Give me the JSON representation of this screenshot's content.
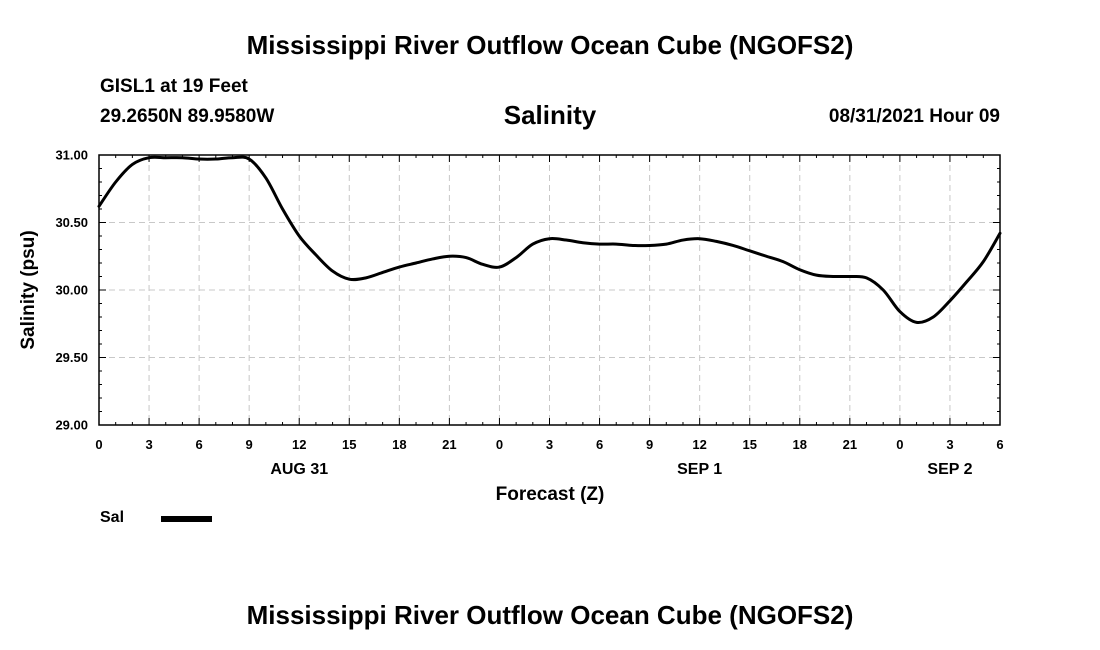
{
  "header": {
    "title_top": "Mississippi River Outflow Ocean Cube (NGOFS2)",
    "station": "GISL1 at 19 Feet",
    "coords": "29.2650N  89.9580W",
    "variable": "Salinity",
    "datetime": "08/31/2021 Hour 09"
  },
  "footer": {
    "title_bottom": "Mississippi River Outflow Ocean Cube (NGOFS2)"
  },
  "legend": {
    "label": "Sal",
    "color": "#000000"
  },
  "chart_data": {
    "type": "line",
    "title": "Salinity",
    "xlabel": "Forecast (Z)",
    "ylabel": "Salinity (psu)",
    "ylim": [
      29.0,
      31.0
    ],
    "xlim": [
      0,
      54
    ],
    "grid": true,
    "y_ticks": [
      29.0,
      29.5,
      30.0,
      30.5,
      31.0
    ],
    "y_tick_labels": [
      "29.00",
      "29.50",
      "30.00",
      "30.50",
      "31.00"
    ],
    "x_ticks": [
      0,
      3,
      6,
      9,
      12,
      15,
      18,
      21,
      24,
      27,
      30,
      33,
      36,
      39,
      42,
      45,
      48,
      51,
      54
    ],
    "x_tick_labels": [
      "0",
      "3",
      "6",
      "9",
      "12",
      "15",
      "18",
      "21",
      "0",
      "3",
      "6",
      "9",
      "12",
      "15",
      "18",
      "21",
      "0",
      "3",
      "6"
    ],
    "date_labels": [
      {
        "x": 12,
        "label": "AUG 31"
      },
      {
        "x": 36,
        "label": "SEP 1"
      },
      {
        "x": 51,
        "label": "SEP 2"
      }
    ],
    "series": [
      {
        "name": "Sal",
        "x": [
          0,
          1,
          2,
          3,
          4,
          5,
          6,
          7,
          8,
          9,
          10,
          11,
          12,
          13,
          14,
          15,
          16,
          17,
          18,
          19,
          20,
          21,
          22,
          23,
          24,
          25,
          26,
          27,
          28,
          29,
          30,
          31,
          32,
          33,
          34,
          35,
          36,
          37,
          38,
          39,
          40,
          41,
          42,
          43,
          44,
          45,
          46,
          47,
          48,
          49,
          50,
          51,
          52,
          53,
          54
        ],
        "values": [
          30.62,
          30.8,
          30.93,
          30.98,
          30.98,
          30.98,
          30.97,
          30.97,
          30.98,
          30.97,
          30.83,
          30.6,
          30.4,
          30.26,
          30.14,
          30.08,
          30.09,
          30.13,
          30.17,
          30.2,
          30.23,
          30.25,
          30.24,
          30.19,
          30.17,
          30.24,
          30.34,
          30.38,
          30.37,
          30.35,
          30.34,
          30.34,
          30.33,
          30.33,
          30.34,
          30.37,
          30.38,
          30.36,
          30.33,
          30.29,
          30.25,
          30.21,
          30.15,
          30.11,
          30.1,
          30.1,
          30.09,
          30.0,
          29.84,
          29.76,
          29.8,
          29.92,
          30.06,
          30.21,
          30.42
        ]
      }
    ]
  }
}
